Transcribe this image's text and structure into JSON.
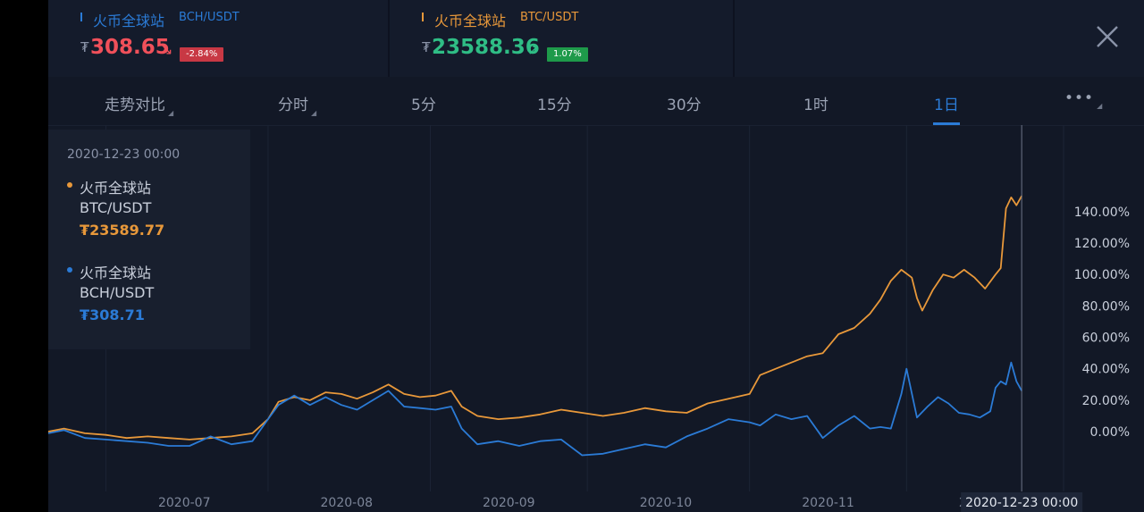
{
  "tickers": [
    {
      "exchange": "火币全球站",
      "pair": "BCH/USDT",
      "currency": "₮",
      "price": "308.65",
      "change": "-2.84%",
      "arrow": "↘",
      "exchange_color": "#2b7bd6",
      "price_color": "#f0505a",
      "badge_color": "#c83844"
    },
    {
      "exchange": "火币全球站",
      "pair": "BTC/USDT",
      "currency": "₮",
      "price": "23588.36",
      "change": "1.07%",
      "arrow": "↗",
      "exchange_color": "#e8983a",
      "price_color": "#2fbd85",
      "badge_color": "#1e9a4a"
    }
  ],
  "tabs": [
    {
      "label": "走势对比",
      "dropdown": true,
      "active": false
    },
    {
      "label": "分时",
      "dropdown": true,
      "active": false
    },
    {
      "label": "5分",
      "dropdown": false,
      "active": false
    },
    {
      "label": "15分",
      "dropdown": false,
      "active": false
    },
    {
      "label": "30分",
      "dropdown": false,
      "active": false
    },
    {
      "label": "1时",
      "dropdown": false,
      "active": false
    },
    {
      "label": "1日",
      "dropdown": false,
      "active": true
    },
    {
      "label": "•••",
      "dropdown": true,
      "active": false
    }
  ],
  "tooltip": {
    "date": "2020-12-23 00:00",
    "series": [
      {
        "exchange": "火币全球站",
        "pair": "BTC/USDT",
        "value": "₮23589.77",
        "color": "#e8983a"
      },
      {
        "exchange": "火币全球站",
        "pair": "BCH/USDT",
        "value": "₮308.71",
        "color": "#2b7bd6"
      }
    ]
  },
  "chart_data": {
    "type": "line",
    "x_ticks": [
      "2020-07",
      "2020-08",
      "2020-09",
      "2020-10",
      "2020-11",
      "2020-12"
    ],
    "crosshair_label": "2020-12-23 00:00",
    "y_ticks": [
      "0.00%",
      "20.00%",
      "40.00%",
      "60.00%",
      "80.00%",
      "100.00%",
      "120.00%",
      "140.00%"
    ],
    "y_tick_values": [
      0,
      20,
      40,
      60,
      80,
      100,
      120,
      140
    ],
    "x_range": [
      "2020-06-20",
      "2020-12-31"
    ],
    "ylim": [
      -38,
      195
    ],
    "grid": "vertical",
    "series": [
      {
        "name": "BTC/USDT",
        "color": "#e8983a",
        "points": [
          [
            "2020-06-20",
            0
          ],
          [
            "2020-06-23",
            2
          ],
          [
            "2020-06-27",
            -1
          ],
          [
            "2020-07-01",
            -2
          ],
          [
            "2020-07-05",
            -4
          ],
          [
            "2020-07-09",
            -3
          ],
          [
            "2020-07-13",
            -4
          ],
          [
            "2020-07-17",
            -5
          ],
          [
            "2020-07-21",
            -4
          ],
          [
            "2020-07-25",
            -3
          ],
          [
            "2020-07-29",
            -1
          ],
          [
            "2020-08-01",
            8
          ],
          [
            "2020-08-03",
            19
          ],
          [
            "2020-08-06",
            22
          ],
          [
            "2020-08-09",
            20
          ],
          [
            "2020-08-12",
            25
          ],
          [
            "2020-08-15",
            24
          ],
          [
            "2020-08-18",
            21
          ],
          [
            "2020-08-21",
            25
          ],
          [
            "2020-08-24",
            30
          ],
          [
            "2020-08-27",
            24
          ],
          [
            "2020-08-30",
            22
          ],
          [
            "2020-09-02",
            23
          ],
          [
            "2020-09-05",
            26
          ],
          [
            "2020-09-07",
            16
          ],
          [
            "2020-09-10",
            10
          ],
          [
            "2020-09-14",
            8
          ],
          [
            "2020-09-18",
            9
          ],
          [
            "2020-09-22",
            11
          ],
          [
            "2020-09-26",
            14
          ],
          [
            "2020-09-30",
            12
          ],
          [
            "2020-10-04",
            10
          ],
          [
            "2020-10-08",
            12
          ],
          [
            "2020-10-12",
            15
          ],
          [
            "2020-10-16",
            13
          ],
          [
            "2020-10-20",
            12
          ],
          [
            "2020-10-24",
            18
          ],
          [
            "2020-10-28",
            21
          ],
          [
            "2020-11-01",
            24
          ],
          [
            "2020-11-03",
            36
          ],
          [
            "2020-11-06",
            40
          ],
          [
            "2020-11-09",
            44
          ],
          [
            "2020-11-12",
            48
          ],
          [
            "2020-11-15",
            50
          ],
          [
            "2020-11-18",
            62
          ],
          [
            "2020-11-21",
            66
          ],
          [
            "2020-11-24",
            75
          ],
          [
            "2020-11-26",
            84
          ],
          [
            "2020-11-28",
            96
          ],
          [
            "2020-11-30",
            103
          ],
          [
            "2020-12-02",
            98
          ],
          [
            "2020-12-03",
            85
          ],
          [
            "2020-12-04",
            77
          ],
          [
            "2020-12-06",
            90
          ],
          [
            "2020-12-08",
            100
          ],
          [
            "2020-12-10",
            98
          ],
          [
            "2020-12-12",
            103
          ],
          [
            "2020-12-14",
            98
          ],
          [
            "2020-12-16",
            91
          ],
          [
            "2020-12-18",
            100
          ],
          [
            "2020-12-19",
            104
          ],
          [
            "2020-12-20",
            142
          ],
          [
            "2020-12-21",
            149
          ],
          [
            "2020-12-22",
            144
          ],
          [
            "2020-12-23",
            150
          ]
        ]
      },
      {
        "name": "BCH/USDT",
        "color": "#2b7bd6",
        "points": [
          [
            "2020-06-20",
            -1
          ],
          [
            "2020-06-23",
            1
          ],
          [
            "2020-06-27",
            -4
          ],
          [
            "2020-07-01",
            -5
          ],
          [
            "2020-07-05",
            -6
          ],
          [
            "2020-07-09",
            -7
          ],
          [
            "2020-07-13",
            -9
          ],
          [
            "2020-07-17",
            -9
          ],
          [
            "2020-07-21",
            -3
          ],
          [
            "2020-07-25",
            -8
          ],
          [
            "2020-07-29",
            -6
          ],
          [
            "2020-08-01",
            8
          ],
          [
            "2020-08-03",
            17
          ],
          [
            "2020-08-06",
            23
          ],
          [
            "2020-08-09",
            17
          ],
          [
            "2020-08-12",
            22
          ],
          [
            "2020-08-15",
            17
          ],
          [
            "2020-08-18",
            14
          ],
          [
            "2020-08-21",
            20
          ],
          [
            "2020-08-24",
            26
          ],
          [
            "2020-08-27",
            16
          ],
          [
            "2020-08-30",
            15
          ],
          [
            "2020-09-02",
            14
          ],
          [
            "2020-09-05",
            16
          ],
          [
            "2020-09-07",
            2
          ],
          [
            "2020-09-10",
            -8
          ],
          [
            "2020-09-14",
            -6
          ],
          [
            "2020-09-18",
            -9
          ],
          [
            "2020-09-22",
            -6
          ],
          [
            "2020-09-26",
            -5
          ],
          [
            "2020-09-30",
            -15
          ],
          [
            "2020-10-04",
            -14
          ],
          [
            "2020-10-08",
            -11
          ],
          [
            "2020-10-12",
            -8
          ],
          [
            "2020-10-16",
            -10
          ],
          [
            "2020-10-20",
            -3
          ],
          [
            "2020-10-24",
            2
          ],
          [
            "2020-10-28",
            8
          ],
          [
            "2020-11-01",
            6
          ],
          [
            "2020-11-03",
            4
          ],
          [
            "2020-11-06",
            11
          ],
          [
            "2020-11-09",
            8
          ],
          [
            "2020-11-12",
            10
          ],
          [
            "2020-11-15",
            -4
          ],
          [
            "2020-11-18",
            4
          ],
          [
            "2020-11-21",
            10
          ],
          [
            "2020-11-24",
            2
          ],
          [
            "2020-11-26",
            3
          ],
          [
            "2020-11-28",
            2
          ],
          [
            "2020-11-30",
            24
          ],
          [
            "2020-12-01",
            40
          ],
          [
            "2020-12-03",
            9
          ],
          [
            "2020-12-05",
            16
          ],
          [
            "2020-12-07",
            22
          ],
          [
            "2020-12-09",
            18
          ],
          [
            "2020-12-11",
            12
          ],
          [
            "2020-12-13",
            11
          ],
          [
            "2020-12-15",
            9
          ],
          [
            "2020-12-17",
            13
          ],
          [
            "2020-12-18",
            28
          ],
          [
            "2020-12-19",
            32
          ],
          [
            "2020-12-20",
            30
          ],
          [
            "2020-12-21",
            44
          ],
          [
            "2020-12-22",
            32
          ],
          [
            "2020-12-23",
            26
          ]
        ]
      }
    ]
  }
}
